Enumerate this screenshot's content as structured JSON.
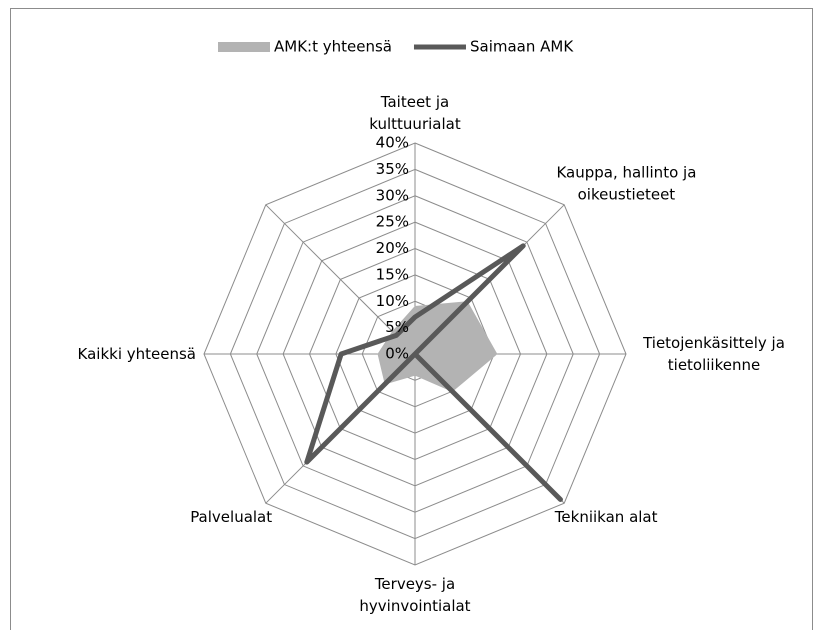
{
  "chart_data": {
    "type": "radar",
    "categories": [
      "Taiteet ja kulttuurialat",
      "Kauppa, hallinto ja oikeustieteet",
      "Tietojenkäsittely ja tietoliikenne",
      "Tekniikan alat",
      "Terveys- ja hyvinvointialat",
      "Palvelualat",
      "Kaikki yhteensä",
      null
    ],
    "series": [
      {
        "name": "AMK:t yhteensä",
        "color": "#b3b3b3",
        "fill": true,
        "values": [
          9,
          14,
          15.5,
          10,
          4,
          8,
          7,
          6
        ]
      },
      {
        "name": "Saimaan AMK",
        "color": "#595959",
        "fill": false,
        "values": [
          7,
          29,
          0,
          39,
          0,
          29,
          14,
          5
        ]
      }
    ],
    "ylim": [
      0,
      40
    ],
    "yticks": [
      {
        "value": 0,
        "label": "0%"
      },
      {
        "value": 5,
        "label": "5%"
      },
      {
        "value": 10,
        "label": "10%"
      },
      {
        "value": 15,
        "label": "15%"
      },
      {
        "value": 20,
        "label": "20%"
      },
      {
        "value": 25,
        "label": "25%"
      },
      {
        "value": 30,
        "label": "30%"
      },
      {
        "value": 35,
        "label": "35%"
      },
      {
        "value": 40,
        "label": "40%"
      }
    ],
    "grid": true,
    "legend": "top"
  }
}
